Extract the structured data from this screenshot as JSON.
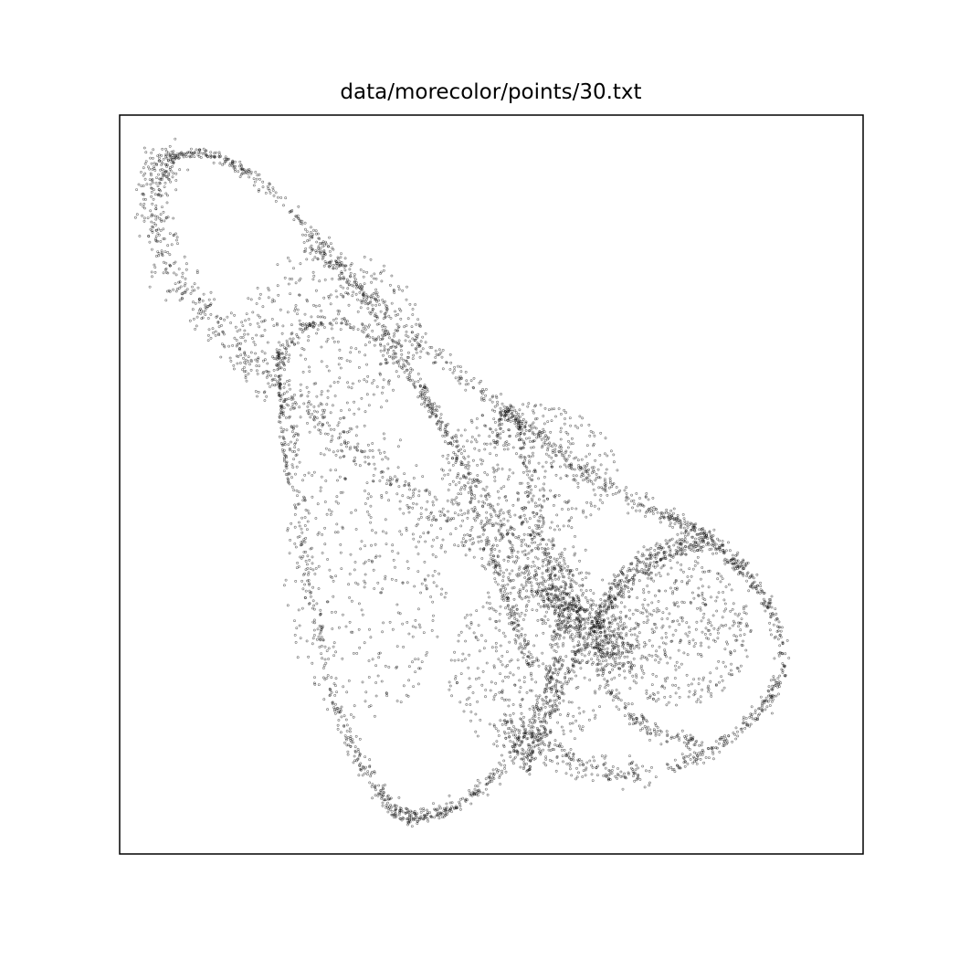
{
  "chart_data": {
    "type": "scatter",
    "title": "data/morecolor/points/30.txt",
    "xlabel": "",
    "ylabel": "",
    "xlim": [
      0,
      100
    ],
    "ylim": [
      0,
      100
    ],
    "ticks": "none",
    "grid": false,
    "legend": "none",
    "colors": {
      "points": "#000000",
      "frame": "#000000",
      "background": "#ffffff"
    },
    "structures": [
      {
        "name": "left-lobe-outer",
        "points": [
          [
            39.4,
            4.9
          ],
          [
            37.8,
            5.6
          ],
          [
            35.8,
            7.4
          ],
          [
            33.4,
            10.9
          ],
          [
            30.8,
            15.8
          ],
          [
            28.2,
            22.7
          ],
          [
            26.4,
            31.8
          ],
          [
            24.8,
            41.6
          ],
          [
            23.7,
            51.4
          ],
          [
            23.4,
            58.4
          ]
        ],
        "spread": 0.9,
        "density": 340
      },
      {
        "name": "left-lobe-lower",
        "points": [
          [
            39.4,
            4.9
          ],
          [
            43.0,
            5.6
          ],
          [
            47.4,
            7.9
          ],
          [
            51.4,
            11.6
          ],
          [
            54.6,
            16.2
          ],
          [
            57.2,
            21.6
          ],
          [
            58.9,
            26.6
          ]
        ],
        "spread": 0.8,
        "density": 300
      },
      {
        "name": "upper-arc",
        "points": [
          [
            6.3,
            94.1
          ],
          [
            9.5,
            94.8
          ],
          [
            14.0,
            94.0
          ],
          [
            19.5,
            90.5
          ],
          [
            25.5,
            84.5
          ],
          [
            31.5,
            77.4
          ],
          [
            37.5,
            68.0
          ],
          [
            42.5,
            59.0
          ],
          [
            46.5,
            50.5
          ],
          [
            49.5,
            42.0
          ],
          [
            52.0,
            35.0
          ],
          [
            54.0,
            29.5
          ],
          [
            55.5,
            25.5
          ]
        ],
        "spread": 0.7,
        "density": 560
      },
      {
        "name": "left-drop",
        "points": [
          [
            6.3,
            94.1
          ],
          [
            5.2,
            91.5
          ],
          [
            4.6,
            87.5
          ],
          [
            6.0,
            81.0
          ],
          [
            10.0,
            74.8
          ],
          [
            16.0,
            68.2
          ],
          [
            23.0,
            62.0
          ],
          [
            32.0,
            54.0
          ],
          [
            42.5,
            46.0
          ],
          [
            52.0,
            39.0
          ],
          [
            59.0,
            34.5
          ],
          [
            65.0,
            32.0
          ]
        ],
        "spread": 2.0,
        "density": 800
      },
      {
        "name": "right-diagonal",
        "points": [
          [
            25.0,
            83.0
          ],
          [
            34.0,
            75.0
          ],
          [
            43.0,
            67.0
          ],
          [
            52.0,
            59.5
          ],
          [
            60.0,
            53.5
          ],
          [
            68.0,
            48.5
          ],
          [
            74.0,
            45.5
          ],
          [
            79.0,
            42.5
          ],
          [
            84.0,
            38.5
          ]
        ],
        "spread": 1.1,
        "density": 520
      },
      {
        "name": "right-lobe-outer",
        "points": [
          [
            74.0,
            45.5
          ],
          [
            79.5,
            42.5
          ],
          [
            83.0,
            39.5
          ],
          [
            86.5,
            35.0
          ],
          [
            88.5,
            30.0
          ],
          [
            89.0,
            25.0
          ],
          [
            87.0,
            20.5
          ],
          [
            83.0,
            16.5
          ],
          [
            78.5,
            13.5
          ],
          [
            74.0,
            11.5
          ]
        ],
        "spread": 0.7,
        "density": 380
      },
      {
        "name": "right-lobe-inner",
        "points": [
          [
            78.3,
            41.4
          ],
          [
            75.5,
            42.0
          ],
          [
            72.0,
            41.0
          ],
          [
            68.0,
            38.0
          ],
          [
            65.5,
            34.0
          ],
          [
            64.5,
            29.0
          ],
          [
            65.5,
            23.5
          ],
          [
            68.5,
            19.0
          ],
          [
            72.5,
            16.5
          ],
          [
            77.5,
            15.0
          ]
        ],
        "spread": 0.9,
        "density": 360
      },
      {
        "name": "central-lower-curve",
        "points": [
          [
            54.5,
            11.5
          ],
          [
            56.0,
            14.8
          ],
          [
            58.0,
            19.5
          ],
          [
            60.5,
            25.0
          ],
          [
            63.5,
            30.5
          ],
          [
            67.5,
            35.5
          ],
          [
            72.0,
            39.5
          ],
          [
            76.5,
            41.5
          ]
        ],
        "spread": 0.8,
        "density": 320
      },
      {
        "name": "center-narrow-lobe",
        "points": [
          [
            50.5,
            55.0
          ],
          [
            51.5,
            59.0
          ],
          [
            52.5,
            60.2
          ],
          [
            53.5,
            58.5
          ],
          [
            54.2,
            55.0
          ],
          [
            55.0,
            50.0
          ],
          [
            56.5,
            44.0
          ],
          [
            58.0,
            38.0
          ],
          [
            59.0,
            33.0
          ],
          [
            58.5,
            27.5
          ]
        ],
        "spread": 0.5,
        "density": 180
      },
      {
        "name": "inner-loop",
        "points": [
          [
            21.8,
            66.5
          ],
          [
            23.5,
            70.0
          ],
          [
            27.0,
            72.0
          ],
          [
            31.0,
            71.5
          ],
          [
            35.0,
            69.0
          ],
          [
            38.5,
            65.5
          ],
          [
            42.0,
            60.5
          ],
          [
            45.5,
            55.0
          ],
          [
            48.5,
            49.0
          ],
          [
            51.5,
            43.5
          ],
          [
            54.5,
            38.5
          ],
          [
            57.5,
            34.0
          ],
          [
            60.0,
            30.5
          ]
        ],
        "spread": 0.7,
        "density": 300
      },
      {
        "name": "left-spike",
        "points": [
          [
            21.3,
            67.8
          ],
          [
            21.6,
            62.0
          ],
          [
            22.0,
            56.0
          ],
          [
            22.6,
            50.0
          ]
        ],
        "spread": 0.25,
        "density": 90
      },
      {
        "name": "lower-right-tail",
        "points": [
          [
            52.0,
            18.0
          ],
          [
            56.0,
            15.0
          ],
          [
            61.0,
            12.5
          ],
          [
            66.5,
            11.2
          ],
          [
            71.0,
            10.5
          ]
        ],
        "spread": 1.6,
        "density": 220
      },
      {
        "name": "central-cluster",
        "points": [
          [
            54.0,
            46.0
          ],
          [
            58.0,
            40.0
          ],
          [
            60.0,
            35.0
          ],
          [
            62.0,
            31.0
          ],
          [
            65.0,
            29.0
          ],
          [
            68.0,
            27.0
          ]
        ],
        "spread": 3.0,
        "density": 650
      }
    ],
    "scatter_fill": [
      {
        "name": "left-lobe-fill",
        "center": [
          33.0,
          38.0
        ],
        "radius": [
          11.0,
          20.0
        ],
        "count": 380
      },
      {
        "name": "right-lobe-fill",
        "center": [
          75.0,
          30.0
        ],
        "radius": [
          10.0,
          10.0
        ],
        "count": 450
      },
      {
        "name": "upper-fill",
        "center": [
          28.0,
          70.0
        ],
        "radius": [
          13.0,
          12.0
        ],
        "count": 380
      },
      {
        "name": "diagonal-fill",
        "center": [
          55.0,
          52.0
        ],
        "radius": [
          12.0,
          9.0
        ],
        "count": 420
      },
      {
        "name": "lower-center-fill",
        "center": [
          55.0,
          25.0
        ],
        "radius": [
          11.0,
          12.0
        ],
        "count": 360
      }
    ]
  }
}
